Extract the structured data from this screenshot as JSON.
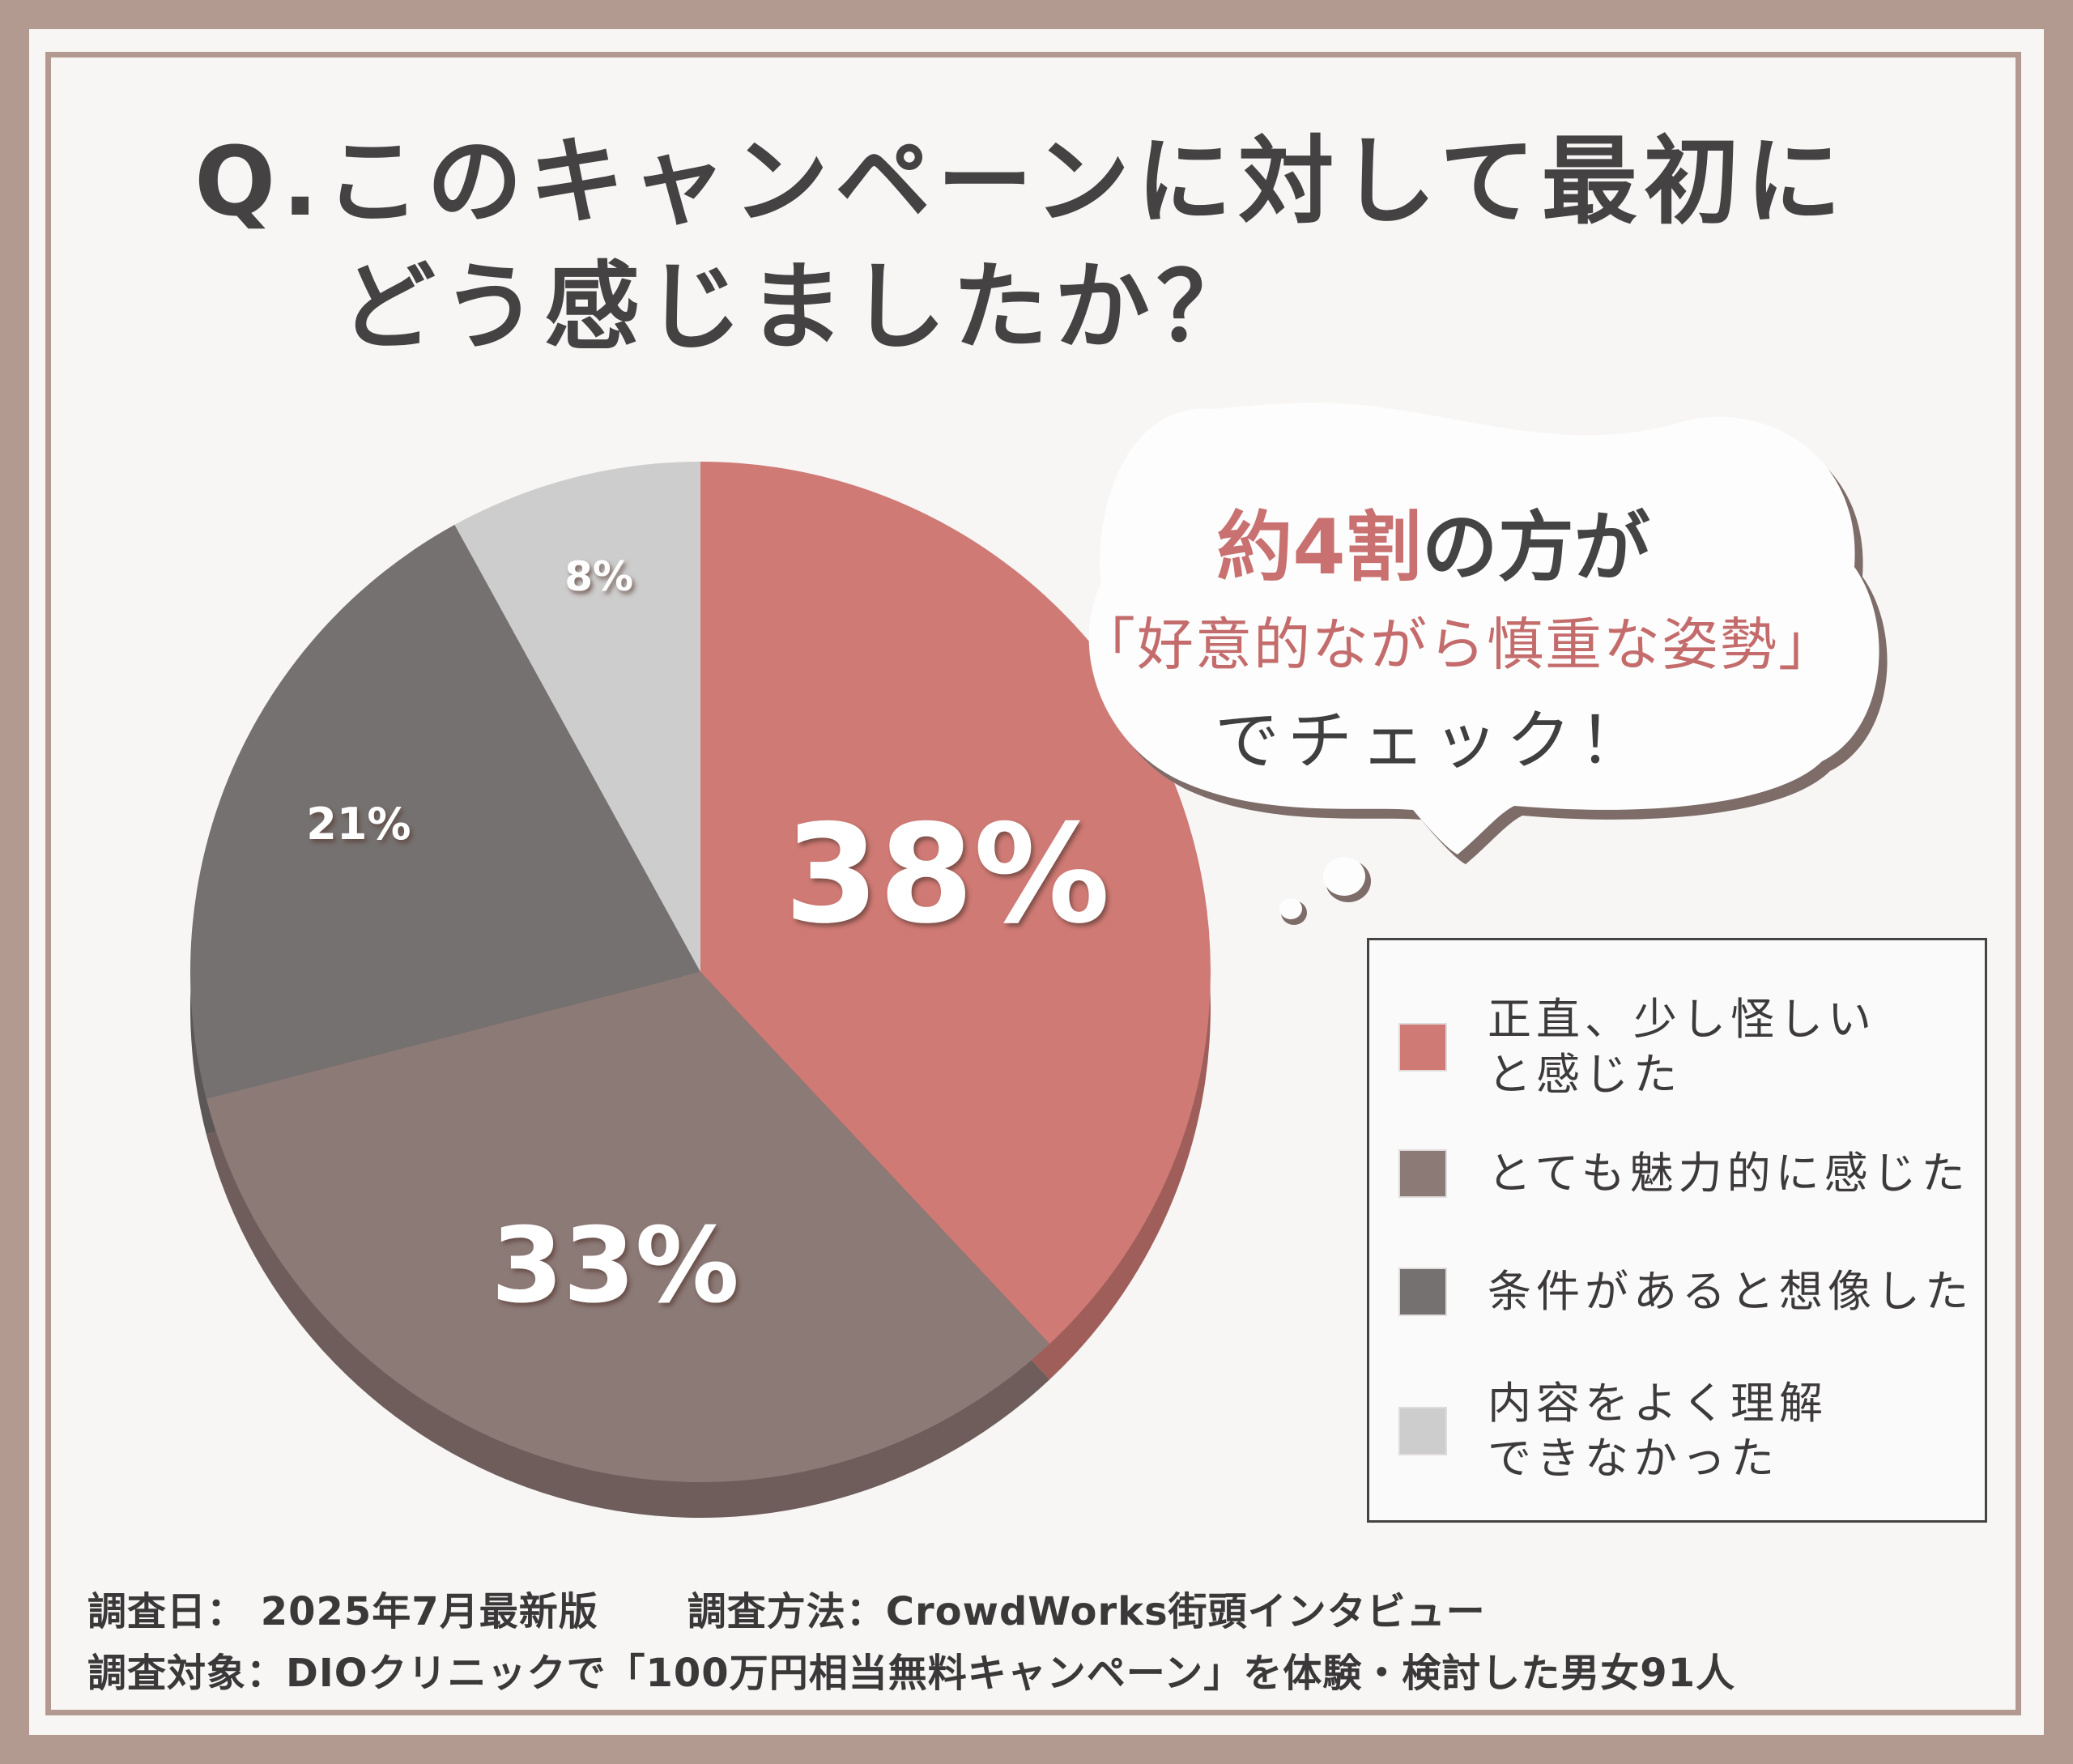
{
  "title": {
    "line1": "Q.このキャンペーンに対して最初に",
    "line2": "どう感じましたか？"
  },
  "callout": {
    "highlight": "約4割",
    "line1_rest": "の方が",
    "line2": "「好意的ながら慎重な姿勢」",
    "line3": "でチェック！"
  },
  "chart_data": {
    "type": "pie",
    "title": "Q.このキャンペーンに対して最初にどう感じましたか？",
    "slices": [
      {
        "label": "正直、少し怪しいと感じた",
        "display": "正直、少し怪しい\nと感じた",
        "value": 38,
        "value_label": "38%",
        "color": "#d07a75"
      },
      {
        "label": "とても魅力的に感じた",
        "display": "とても魅力的に感じた",
        "value": 33,
        "value_label": "33%",
        "color": "#8c7a77"
      },
      {
        "label": "条件があると想像した",
        "display": "条件があると想像した",
        "value": 21,
        "value_label": "21%",
        "color": "#757170"
      },
      {
        "label": "内容をよく理解できなかった",
        "display": "内容をよく理解\nできなかった",
        "value": 8,
        "value_label": "8%",
        "color": "#cdcdcd"
      }
    ],
    "legend_position": "right"
  },
  "footer": {
    "date": "調査日： 2025年7月最新版",
    "method": "調査方法：CrowdWorks街頭インタビュー",
    "subject": "調査対象：DIOクリニックで「100万円相当無料キャンペーン」を体験・検討した男女91人"
  }
}
